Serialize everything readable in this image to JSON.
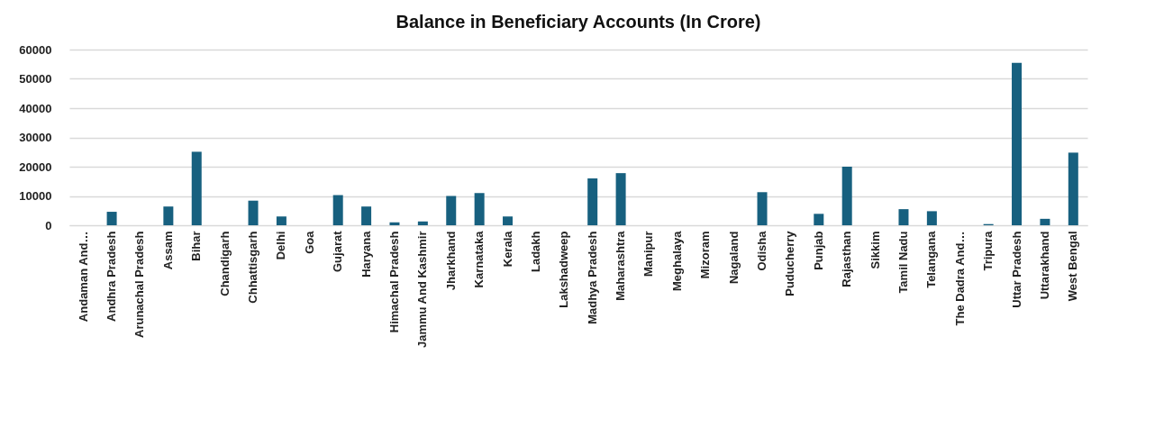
{
  "chart_data": {
    "type": "bar",
    "title": "Balance in Beneficiary Accounts (In Crore)",
    "categories": [
      "Andaman And…",
      "Andhra Pradesh",
      "Arunachal Pradesh",
      "Assam",
      "Bihar",
      "Chandigarh",
      "Chhattisgarh",
      "Delhi",
      "Goa",
      "Gujarat",
      "Haryana",
      "Himachal Pradesh",
      "Jammu And Kashmir",
      "Jharkhand",
      "Karnataka",
      "Kerala",
      "Ladakh",
      "Lakshadweep",
      "Madhya Pradesh",
      "Maharashtra",
      "Manipur",
      "Meghalaya",
      "Mizoram",
      "Nagaland",
      "Odisha",
      "Puducherry",
      "Punjab",
      "Rajasthan",
      "Sikkim",
      "Tamil Nadu",
      "Telangana",
      "The Dadra And…",
      "Tripura",
      "Uttar Pradesh",
      "Uttarakhand",
      "West Bengal"
    ],
    "values": [
      0,
      4600,
      0,
      6400,
      25100,
      0,
      8400,
      3000,
      0,
      10300,
      6400,
      1000,
      1300,
      10000,
      11000,
      3000,
      0,
      0,
      16000,
      17800,
      0,
      0,
      0,
      0,
      11300,
      0,
      3900,
      20000,
      0,
      5500,
      4800,
      0,
      400,
      55500,
      2200,
      24800
    ],
    "color": "#17607f",
    "ylim": [
      0,
      60000
    ],
    "yticks": [
      0,
      10000,
      20000,
      30000,
      40000,
      50000,
      60000
    ],
    "grid": "y"
  }
}
